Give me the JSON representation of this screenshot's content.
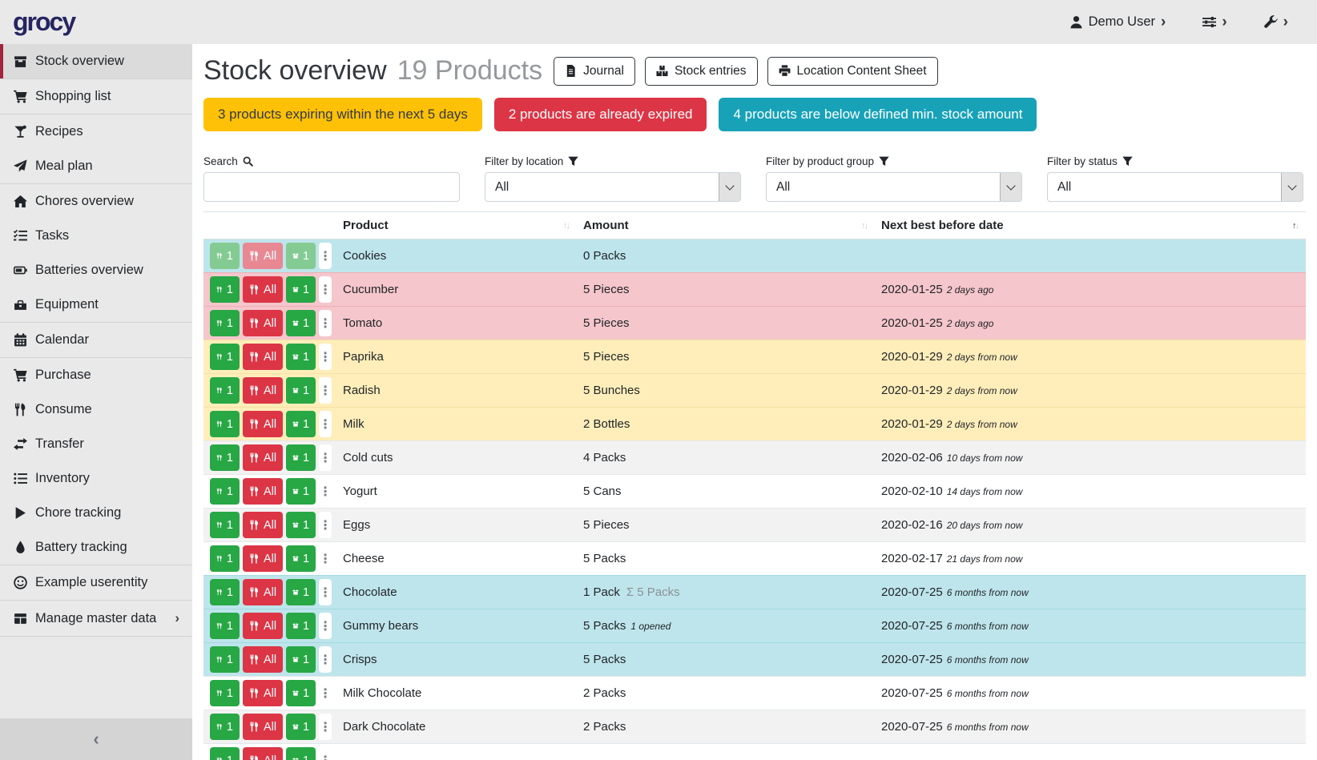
{
  "brand": {
    "logo": "grocy"
  },
  "navbar": {
    "user_label": "Demo User"
  },
  "icons": {
    "chevron_right": "›",
    "collapse_left": "‹",
    "ellipsis": "⋮",
    "sort_up": "↑",
    "sort_down": "↓",
    "sigma": "Σ"
  },
  "colors": {
    "success": "#28a745",
    "danger": "#dc3545",
    "warning": "#ffc107",
    "info": "#17a2b8",
    "row_info": "#bee5eb",
    "row_danger": "#f5c6cb",
    "row_warning": "#ffeeba",
    "sidebar_active_border": "#a3243c",
    "logo": "#262561"
  },
  "sidebar": {
    "groups": [
      [
        {
          "label": "Stock overview",
          "icon": "box-icon",
          "active": true
        }
      ],
      [
        {
          "label": "Shopping list",
          "icon": "cart-icon"
        }
      ],
      [
        {
          "label": "Recipes",
          "icon": "cocktail-icon"
        },
        {
          "label": "Meal plan",
          "icon": "paper-plane-icon"
        }
      ],
      [
        {
          "label": "Chores overview",
          "icon": "home-icon"
        },
        {
          "label": "Tasks",
          "icon": "tasks-icon"
        },
        {
          "label": "Batteries overview",
          "icon": "battery-icon"
        },
        {
          "label": "Equipment",
          "icon": "toolbox-icon"
        }
      ],
      [
        {
          "label": "Calendar",
          "icon": "calendar-icon"
        }
      ],
      [
        {
          "label": "Purchase",
          "icon": "cart-icon"
        },
        {
          "label": "Consume",
          "icon": "utensils-icon"
        },
        {
          "label": "Transfer",
          "icon": "exchange-icon"
        },
        {
          "label": "Inventory",
          "icon": "list-icon"
        },
        {
          "label": "Chore tracking",
          "icon": "play-icon"
        },
        {
          "label": "Battery tracking",
          "icon": "droplet-icon"
        }
      ],
      [
        {
          "label": "Example userentity",
          "icon": "smiley-icon"
        }
      ],
      [
        {
          "label": "Manage master data",
          "icon": "table-icon",
          "chevron": true
        }
      ]
    ]
  },
  "page": {
    "title": "Stock overview",
    "subtitle": "19 Products",
    "actions": [
      {
        "label": "Journal",
        "icon": "journal-icon"
      },
      {
        "label": "Stock entries",
        "icon": "boxes-icon"
      },
      {
        "label": "Location Content Sheet",
        "icon": "print-icon"
      }
    ]
  },
  "banners": [
    {
      "text": "3 products expiring within the next 5 days",
      "type": "warning"
    },
    {
      "text": "2 products are already expired",
      "type": "danger"
    },
    {
      "text": "4 products are below defined min. stock amount",
      "type": "info"
    }
  ],
  "filters": {
    "search_label": "Search",
    "search_value": "",
    "location_label": "Filter by location",
    "location_value": "All",
    "product_group_label": "Filter by product group",
    "product_group_value": "All",
    "status_label": "Filter by status",
    "status_value": "All"
  },
  "table": {
    "headers": [
      {
        "label": "Product",
        "sorted": ""
      },
      {
        "label": "Amount",
        "sorted": ""
      },
      {
        "label": "Next best before date",
        "sorted": "asc"
      }
    ],
    "row_buttons": {
      "consume_one": "1",
      "consume_all": "All",
      "open_one": "1"
    },
    "rows": [
      {
        "name": "Cookies",
        "amount": "0 Packs",
        "date": "",
        "relative": "",
        "status": "info",
        "buttons_muted": true
      },
      {
        "name": "Cucumber",
        "amount": "5 Pieces",
        "date": "2020-01-25",
        "relative": "2 days ago",
        "status": "danger"
      },
      {
        "name": "Tomato",
        "amount": "5 Pieces",
        "date": "2020-01-25",
        "relative": "2 days ago",
        "status": "danger"
      },
      {
        "name": "Paprika",
        "amount": "5 Pieces",
        "date": "2020-01-29",
        "relative": "2 days from now",
        "status": "warning"
      },
      {
        "name": "Radish",
        "amount": "5 Bunches",
        "date": "2020-01-29",
        "relative": "2 days from now",
        "status": "warning"
      },
      {
        "name": "Milk",
        "amount": "2 Bottles",
        "date": "2020-01-29",
        "relative": "2 days from now",
        "status": "warning"
      },
      {
        "name": "Cold cuts",
        "amount": "4 Packs",
        "date": "2020-02-06",
        "relative": "10 days from now",
        "status": ""
      },
      {
        "name": "Yogurt",
        "amount": "5 Cans",
        "date": "2020-02-10",
        "relative": "14 days from now",
        "status": ""
      },
      {
        "name": "Eggs",
        "amount": "5 Pieces",
        "date": "2020-02-16",
        "relative": "20 days from now",
        "status": ""
      },
      {
        "name": "Cheese",
        "amount": "5 Packs",
        "date": "2020-02-17",
        "relative": "21 days from now",
        "status": ""
      },
      {
        "name": "Chocolate",
        "amount": "1 Pack",
        "amount_sum": "5 Packs",
        "date": "2020-07-25",
        "relative": "6 months from now",
        "status": "info"
      },
      {
        "name": "Gummy bears",
        "amount": "5 Packs",
        "amount_opened": "1 opened",
        "date": "2020-07-25",
        "relative": "6 months from now",
        "status": "info"
      },
      {
        "name": "Crisps",
        "amount": "5 Packs",
        "date": "2020-07-25",
        "relative": "6 months from now",
        "status": "info"
      },
      {
        "name": "Milk Chocolate",
        "amount": "2 Packs",
        "date": "2020-07-25",
        "relative": "6 months from now",
        "status": ""
      },
      {
        "name": "Dark Chocolate",
        "amount": "2 Packs",
        "date": "2020-07-25",
        "relative": "6 months from now",
        "status": ""
      },
      {
        "name": "",
        "amount": "",
        "date": "",
        "relative": "",
        "status": "",
        "partial": true
      }
    ]
  }
}
